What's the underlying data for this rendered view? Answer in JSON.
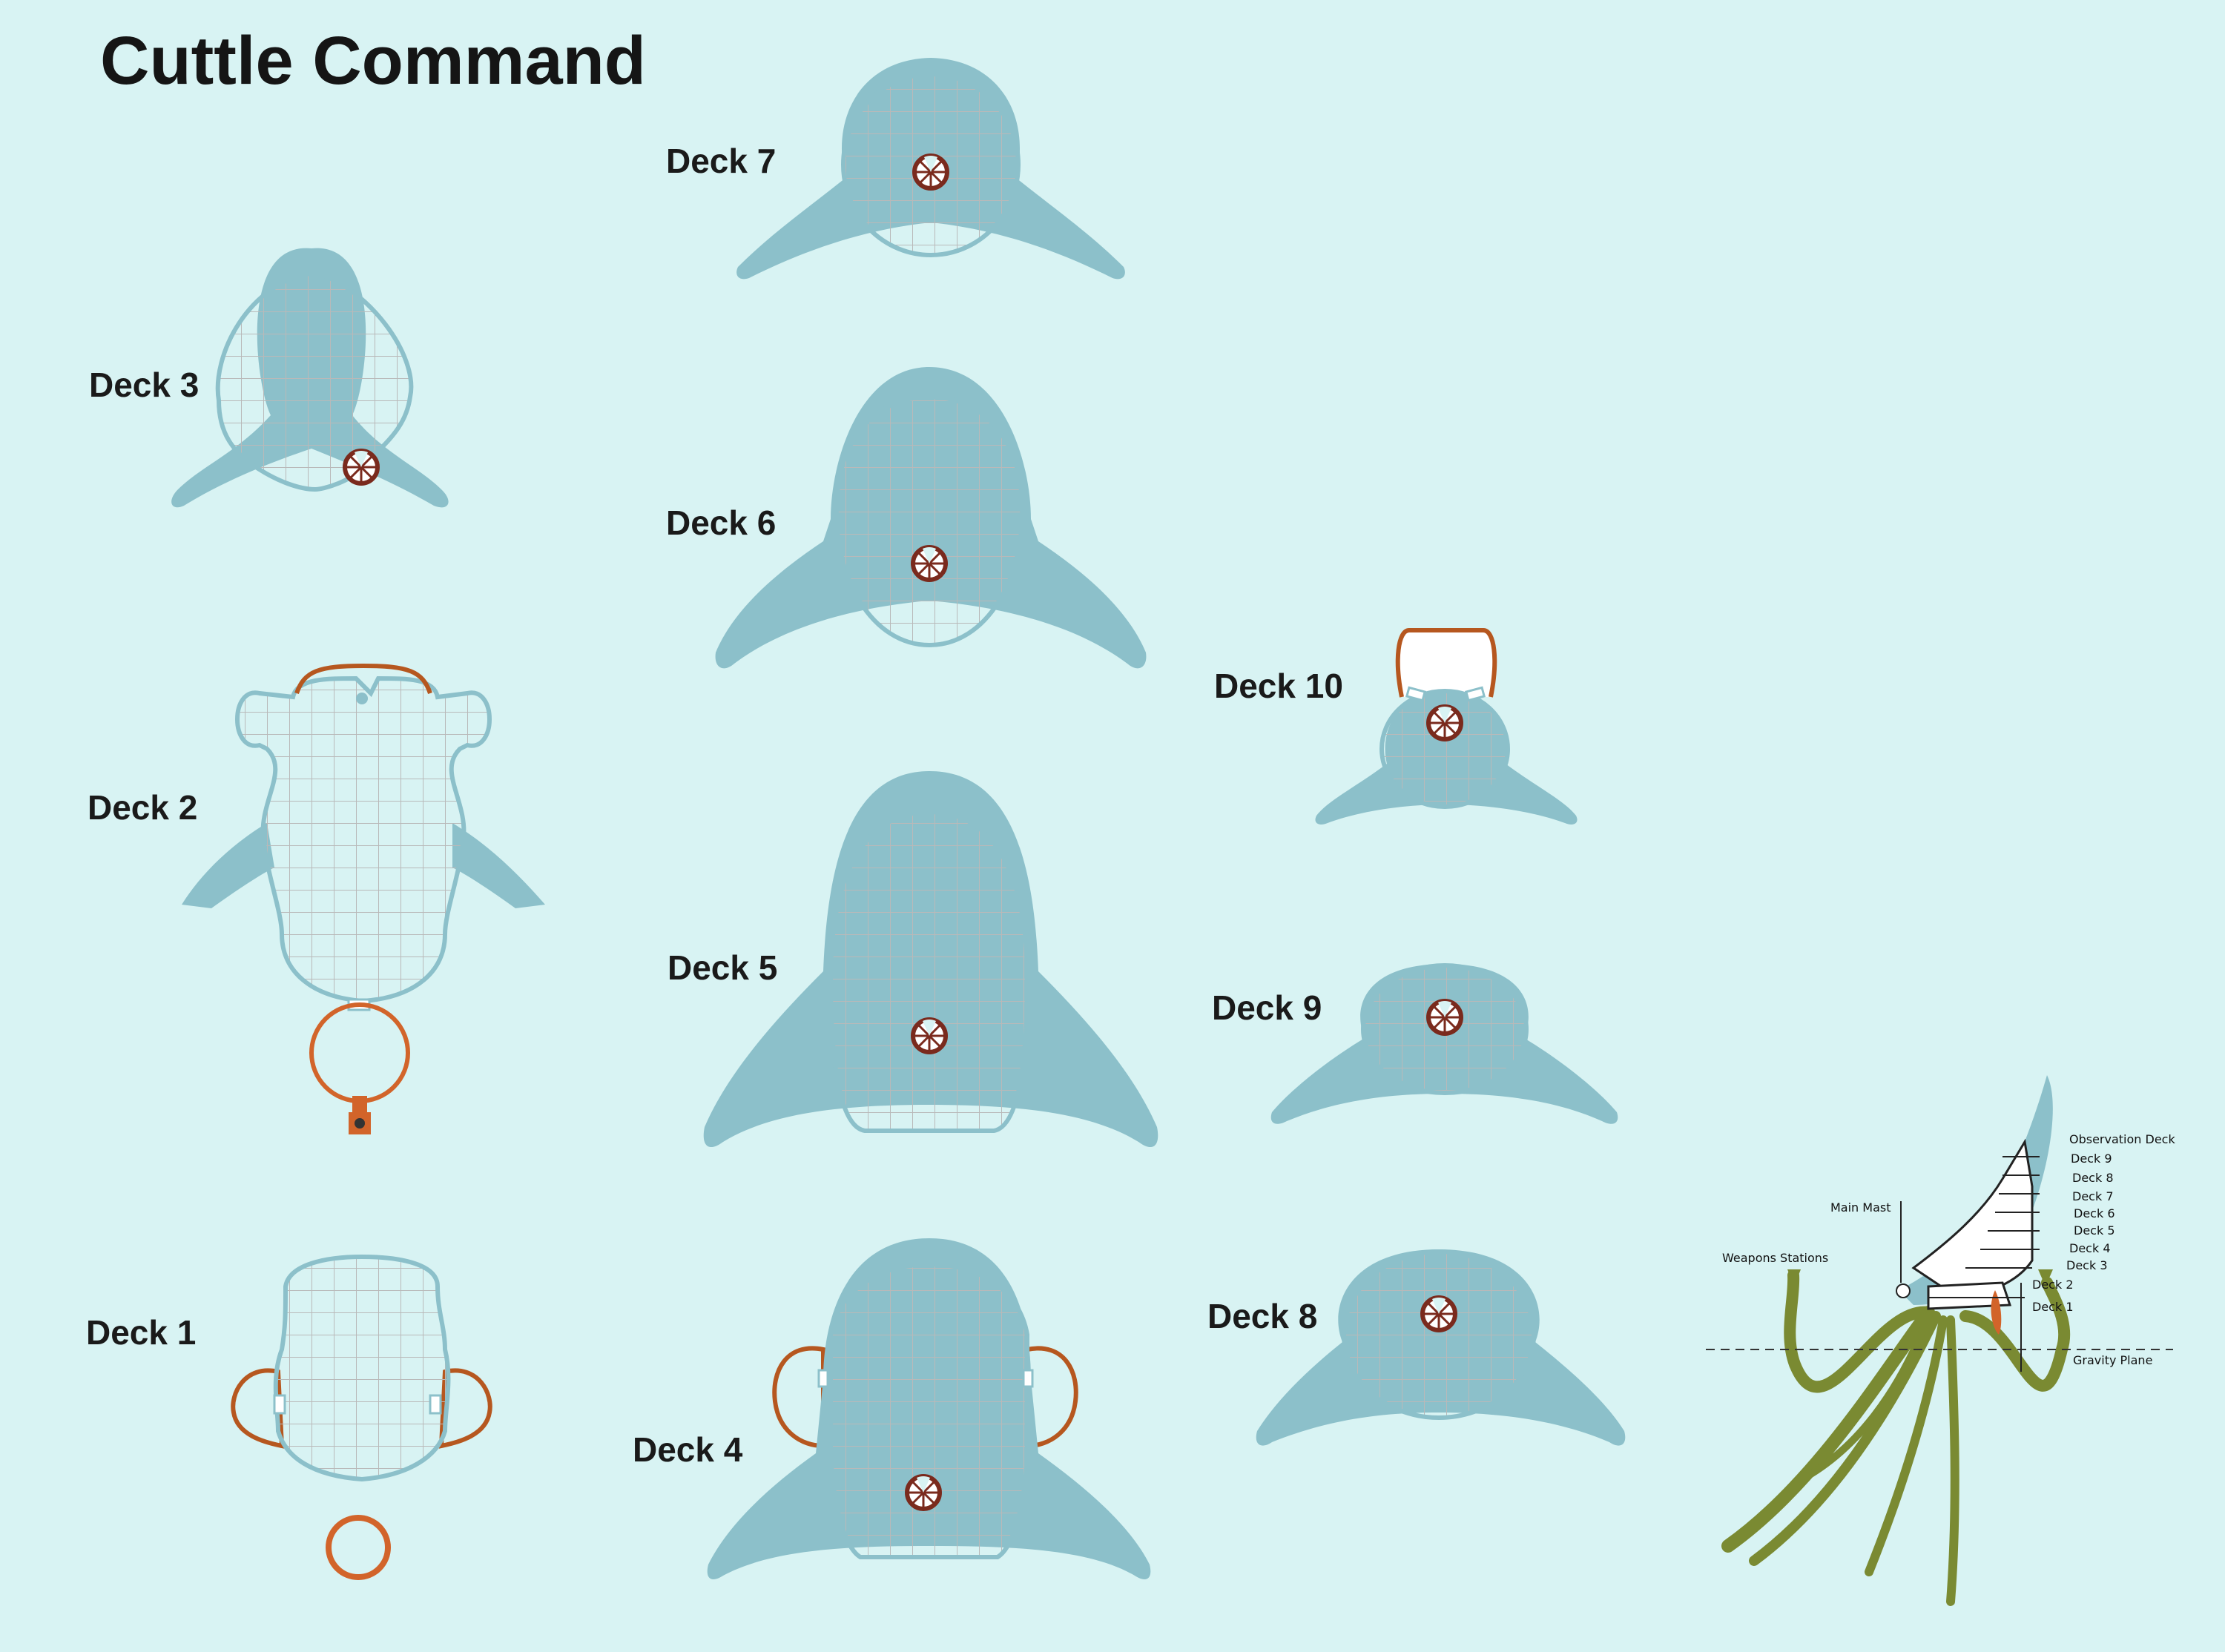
{
  "title": "Cuttle Command",
  "decks": {
    "deck1": "Deck 1",
    "deck2": "Deck 2",
    "deck3": "Deck 3",
    "deck4": "Deck 4",
    "deck5": "Deck 5",
    "deck6": "Deck 6",
    "deck7": "Deck 7",
    "deck8": "Deck 8",
    "deck9": "Deck 9",
    "deck10": "Deck 10"
  },
  "side_view": {
    "observation_deck": "Observation Deck",
    "deck9": "Deck 9",
    "deck8": "Deck 8",
    "deck7": "Deck 7",
    "deck6": "Deck 6",
    "deck5": "Deck 5",
    "deck4": "Deck 4",
    "deck3": "Deck 3",
    "deck2": "Deck 2",
    "deck1": "Deck 1",
    "main_mast": "Main Mast",
    "weapons_stations": "Weapons Stations",
    "gravity_plane": "Gravity Plane"
  },
  "colors": {
    "background": "#d8f3f3",
    "hull": "#8cc0ca",
    "floor": "#ffffff",
    "grid": "#b9b9b9",
    "lift": "#7a2a1d",
    "dock": "#d2642a",
    "tentacle": "#7a8a32"
  }
}
